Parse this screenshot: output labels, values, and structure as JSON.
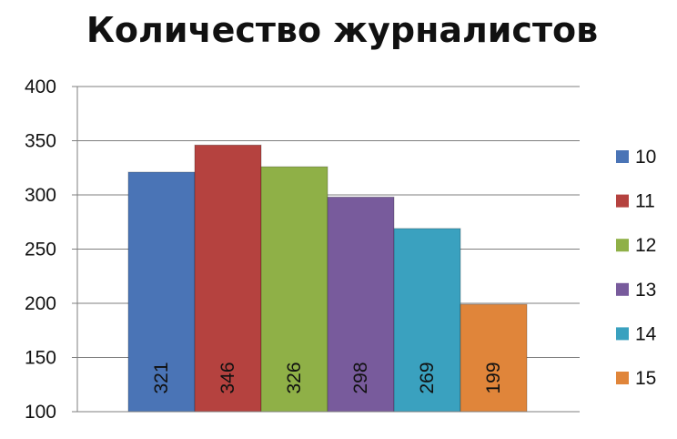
{
  "chart_data": {
    "type": "bar",
    "title": "Количество журналистов",
    "xlabel": "",
    "ylabel": "",
    "ylim": [
      100,
      400
    ],
    "yticks": [
      100,
      150,
      200,
      250,
      300,
      350,
      400
    ],
    "grid": true,
    "legend_position": "right",
    "series": [
      {
        "name": "10",
        "value": 321,
        "color": "#4a74b6"
      },
      {
        "name": "11",
        "value": 346,
        "color": "#b5423f"
      },
      {
        "name": "12",
        "value": 326,
        "color": "#8fb047"
      },
      {
        "name": "13",
        "value": 298,
        "color": "#785b9c"
      },
      {
        "name": "14",
        "value": 269,
        "color": "#3aa1bf"
      },
      {
        "name": "15",
        "value": 199,
        "color": "#e0853a"
      }
    ]
  }
}
